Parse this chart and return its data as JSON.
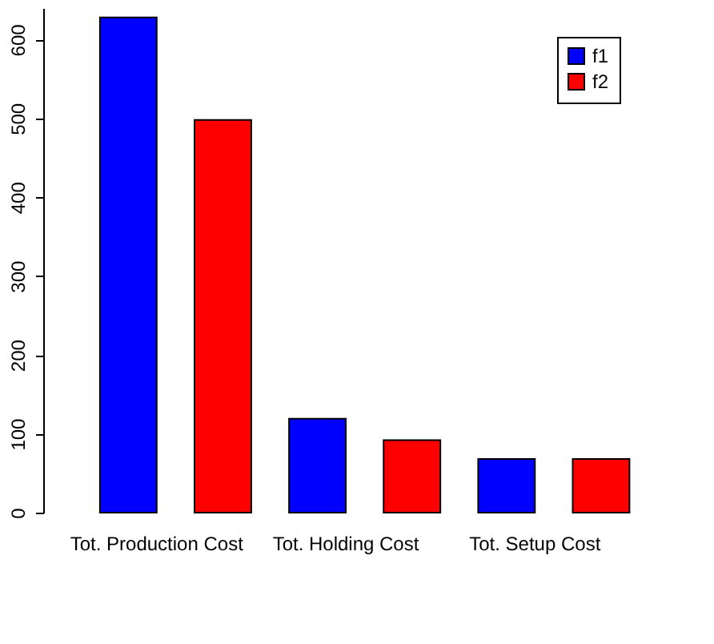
{
  "chart_data": {
    "type": "bar",
    "categories": [
      "Tot. Production Cost",
      "Tot. Holding Cost",
      "Tot. Setup Cost"
    ],
    "series": [
      {
        "name": "f1",
        "color": "#0000ff",
        "values": [
          628,
          119,
          68
        ]
      },
      {
        "name": "f2",
        "color": "#ff0000",
        "values": [
          498,
          92,
          68
        ]
      }
    ],
    "ylim": [
      0,
      640
    ],
    "yticks": [
      0,
      100,
      200,
      300,
      400,
      500,
      600
    ],
    "grid": false,
    "legend": "top right"
  }
}
